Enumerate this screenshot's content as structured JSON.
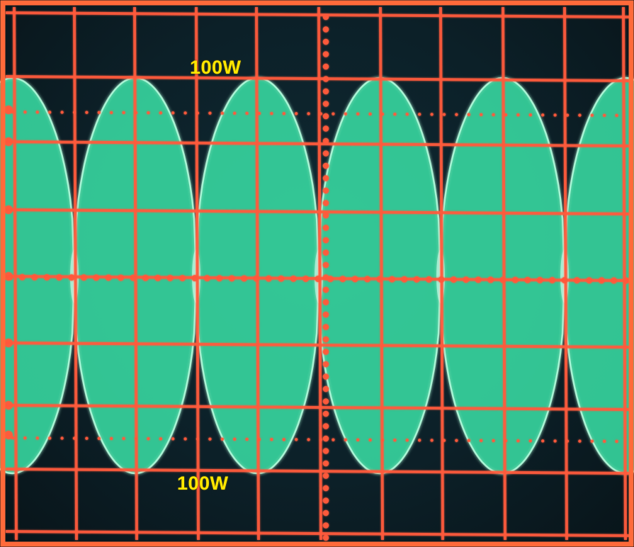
{
  "screen": {
    "trace_color": "#38e0a6",
    "grid_color": "#ff5a3c",
    "bezel_color": "#ff6a3a",
    "background_color": "#0c2028"
  },
  "labels": {
    "top_amplitude": "100W",
    "bottom_amplitude": "100W"
  },
  "waveform": {
    "type": "amplitude-modulated envelope",
    "visible_periods": 5
  }
}
